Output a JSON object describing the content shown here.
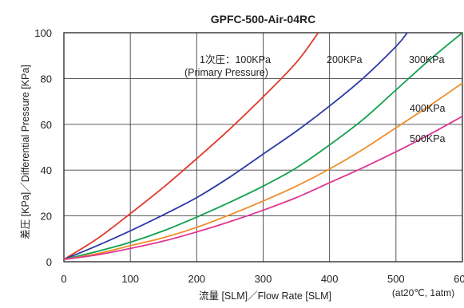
{
  "chart_data": {
    "type": "line",
    "title": "GPFC-500-Air-04RC",
    "xlabel": "流量 [SLM]／Flow Rate [SLM]",
    "ylabel": "差圧 [KPa]／Differential Pressure [KPa]",
    "xlim": [
      0,
      600
    ],
    "ylim": [
      0,
      100
    ],
    "x_ticks": [
      "0",
      "100",
      "200",
      "300",
      "400",
      "500",
      "600"
    ],
    "y_ticks": [
      "0",
      "20",
      "40",
      "60",
      "80",
      "100"
    ],
    "grid": true,
    "note": "(at20℃, 1atm)",
    "series": [
      {
        "name": "1次圧：100KPa",
        "sublabel": "(Primary Pressure)",
        "color": "#e0392a",
        "points": [
          [
            0,
            1
          ],
          [
            50,
            10
          ],
          [
            100,
            21
          ],
          [
            150,
            32.5
          ],
          [
            200,
            45
          ],
          [
            250,
            58
          ],
          [
            300,
            72
          ],
          [
            350,
            87
          ],
          [
            383,
            100
          ]
        ]
      },
      {
        "name": "200KPa",
        "color": "#2c3aa6",
        "points": [
          [
            0,
            1
          ],
          [
            50,
            7
          ],
          [
            100,
            13.5
          ],
          [
            150,
            20.5
          ],
          [
            200,
            28
          ],
          [
            250,
            37
          ],
          [
            300,
            47
          ],
          [
            350,
            57
          ],
          [
            400,
            68
          ],
          [
            450,
            80
          ],
          [
            500,
            94
          ],
          [
            517,
            100
          ]
        ]
      },
      {
        "name": "300KPa",
        "color": "#10a050",
        "points": [
          [
            0,
            1
          ],
          [
            50,
            4.5
          ],
          [
            100,
            8.5
          ],
          [
            150,
            13.5
          ],
          [
            200,
            19.5
          ],
          [
            250,
            26
          ],
          [
            300,
            33
          ],
          [
            350,
            41
          ],
          [
            400,
            51
          ],
          [
            450,
            62
          ],
          [
            500,
            75
          ],
          [
            550,
            88
          ],
          [
            600,
            100
          ]
        ]
      },
      {
        "name": "400KPa",
        "color": "#f08c28",
        "points": [
          [
            0,
            1
          ],
          [
            50,
            3.5
          ],
          [
            100,
            7
          ],
          [
            150,
            10.5
          ],
          [
            200,
            15
          ],
          [
            250,
            20.5
          ],
          [
            300,
            26.5
          ],
          [
            350,
            33
          ],
          [
            400,
            40.5
          ],
          [
            450,
            49
          ],
          [
            500,
            58.5
          ],
          [
            550,
            68
          ],
          [
            600,
            78
          ]
        ]
      },
      {
        "name": "500KPa",
        "color": "#e0358f",
        "points": [
          [
            0,
            1
          ],
          [
            50,
            3
          ],
          [
            100,
            5.8
          ],
          [
            150,
            9
          ],
          [
            200,
            13
          ],
          [
            250,
            17.5
          ],
          [
            300,
            22.5
          ],
          [
            350,
            28
          ],
          [
            400,
            34.5
          ],
          [
            450,
            41
          ],
          [
            500,
            48
          ],
          [
            550,
            55.5
          ],
          [
            600,
            63.5
          ]
        ]
      }
    ]
  }
}
